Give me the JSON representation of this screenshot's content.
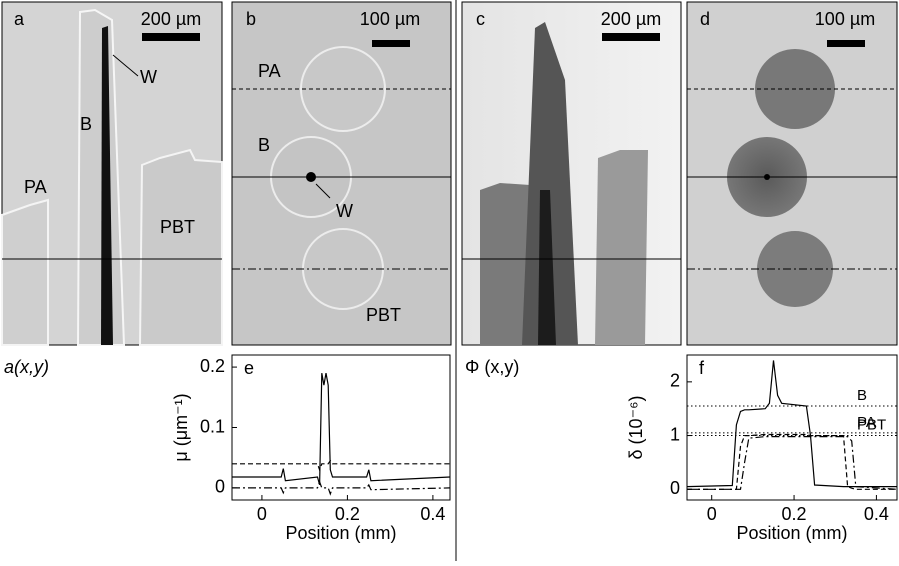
{
  "panels": [
    {
      "letter": "a",
      "scale_bar": "200 µm",
      "labels": [
        "W",
        "B",
        "PA",
        "PBT"
      ]
    },
    {
      "letter": "b",
      "scale_bar": "100 µm",
      "labels": [
        "PA",
        "B",
        "W",
        "PBT"
      ]
    },
    {
      "letter": "c",
      "scale_bar": "200 µm"
    },
    {
      "letter": "d",
      "scale_bar": "100 µm"
    }
  ],
  "captions": [
    "a(x,y)",
    "Φ (x,y)"
  ],
  "chart_data": [
    {
      "type": "line",
      "panel_label": "e",
      "xlabel": "Position (mm)",
      "ylabel": "μ (μm⁻¹)",
      "xlim": [
        -0.07,
        0.44
      ],
      "ylim": [
        -0.02,
        0.22
      ],
      "xticks": [
        0,
        0.2,
        0.4
      ],
      "yticks": [
        0,
        0.1,
        0.2
      ],
      "x": [
        -0.07,
        0.045,
        0.05,
        0.055,
        0.13,
        0.135,
        0.14,
        0.145,
        0.15,
        0.155,
        0.16,
        0.165,
        0.245,
        0.25,
        0.255,
        0.44
      ],
      "series": [
        {
          "color": "#000000",
          "dash": "solid",
          "values": [
            0.018,
            0.018,
            0.032,
            0.012,
            0.018,
            0.005,
            0.19,
            0.17,
            0.19,
            0.17,
            0.03,
            0.018,
            0.018,
            0.03,
            0.012,
            0.018
          ]
        },
        {
          "color": "#000000",
          "dash": "dashed",
          "values": [
            0.04,
            0.04,
            0.04,
            0.04,
            0.04,
            0.03,
            0.04,
            0.04,
            0.04,
            0.04,
            0.045,
            0.04,
            0.04,
            0.04,
            0.04,
            0.04
          ]
        },
        {
          "color": "#000000",
          "dash": "dashdot",
          "values": [
            0,
            0,
            -0.008,
            0,
            0,
            0.01,
            0,
            0,
            0,
            0,
            -0.01,
            0,
            0,
            0.005,
            -0.003,
            0
          ]
        }
      ]
    },
    {
      "type": "line",
      "panel_label": "f",
      "xlabel": "Position (mm)",
      "ylabel": "δ (10⁻⁶)",
      "xlim": [
        -0.06,
        0.45
      ],
      "ylim": [
        -0.2,
        2.5
      ],
      "xticks": [
        0,
        0.2,
        0.4
      ],
      "yticks": [
        0,
        1,
        2
      ],
      "x": [
        -0.06,
        0.05,
        0.06,
        0.07,
        0.08,
        0.09,
        0.13,
        0.14,
        0.15,
        0.16,
        0.17,
        0.23,
        0.24,
        0.25,
        0.32,
        0.33,
        0.34,
        0.35,
        0.45
      ],
      "series": [
        {
          "color": "#000000",
          "dash": "solid",
          "values": [
            0.05,
            0.07,
            1.2,
            1.45,
            1.48,
            1.48,
            1.5,
            1.6,
            2.4,
            1.75,
            1.6,
            1.55,
            1.0,
            0.08,
            0.05,
            0.05,
            0.05,
            0.05,
            0.05
          ]
        },
        {
          "color": "#000000",
          "dash": "dashed",
          "values": [
            0,
            0,
            0,
            0.8,
            1.0,
            1.0,
            1.02,
            1.02,
            1.02,
            1.02,
            1.02,
            1.02,
            1.0,
            1.0,
            1.0,
            0.05,
            0.02,
            0,
            0
          ]
        },
        {
          "color": "#000000",
          "dash": "dashdot",
          "values": [
            0,
            0,
            0,
            0,
            0.5,
            0.95,
            0.98,
            0.98,
            0.98,
            0.98,
            0.98,
            0.98,
            0.98,
            0.98,
            0.98,
            0.98,
            0.9,
            0.05,
            0
          ]
        }
      ],
      "reference_lines": [
        {
          "label": "B",
          "value": 1.55
        },
        {
          "label": "PA",
          "value": 1.05
        },
        {
          "label": "PBT",
          "value": 1.0
        }
      ]
    }
  ]
}
